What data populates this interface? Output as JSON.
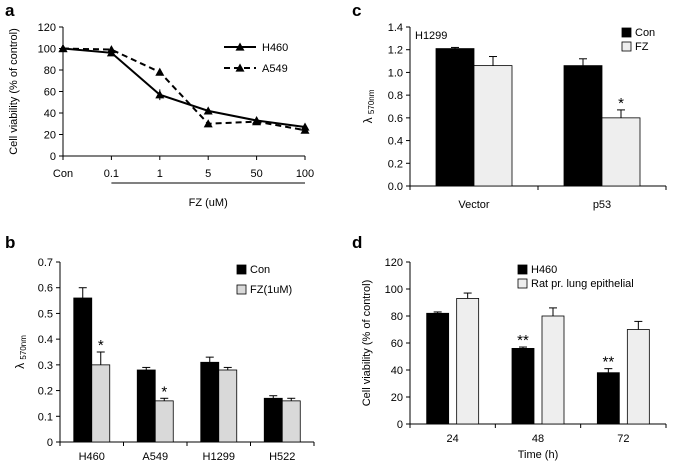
{
  "chart_data": [
    {
      "panel": "a",
      "type": "line",
      "xlabel": "FZ (uM)",
      "ylabel": "Cell viability (% of control)",
      "categories": [
        "Con",
        "0.1",
        "1",
        "5",
        "50",
        "100"
      ],
      "ylim": [
        0,
        120
      ],
      "yticks": [
        0,
        20,
        40,
        60,
        80,
        100,
        120
      ],
      "grid": false,
      "legend": "top-right",
      "series": [
        {
          "name": "H460",
          "values": [
            100,
            96,
            57,
            42,
            33,
            27
          ],
          "errors": [
            3,
            2,
            5,
            2,
            2,
            2
          ],
          "style": "solid",
          "marker": "triangle",
          "color": "#000000"
        },
        {
          "name": "A549",
          "values": [
            100,
            99,
            78,
            30,
            32,
            24
          ],
          "errors": [
            2,
            2,
            2,
            2,
            2,
            2
          ],
          "style": "dashed",
          "marker": "triangle",
          "color": "#000000"
        }
      ]
    },
    {
      "panel": "b",
      "type": "bar",
      "ylabel": "λ 570nm",
      "ylabel_main": "λ",
      "ylabel_sub": "570nm",
      "categories": [
        "H460",
        "A549",
        "H1299",
        "H522"
      ],
      "ylim": [
        0,
        0.7
      ],
      "yticks": [
        "0",
        "0.1",
        "0.2",
        "0.3",
        "0.4",
        "0.5",
        "0.6",
        "0.7"
      ],
      "legend": "top-right",
      "series": [
        {
          "name": "Con",
          "values": [
            0.56,
            0.28,
            0.31,
            0.17
          ],
          "errors": [
            0.04,
            0.01,
            0.02,
            0.01
          ],
          "color": "#000000"
        },
        {
          "name": "FZ(1uM)",
          "values": [
            0.3,
            0.16,
            0.28,
            0.16
          ],
          "errors": [
            0.05,
            0.01,
            0.01,
            0.01
          ],
          "color": "#d9d9d9"
        }
      ],
      "annotations": [
        {
          "category": "H460",
          "series": "FZ(1uM)",
          "text": "*"
        },
        {
          "category": "A549",
          "series": "FZ(1uM)",
          "text": "*"
        }
      ]
    },
    {
      "panel": "c",
      "type": "bar",
      "title": "H1299",
      "ylabel": "λ 570nm",
      "ylabel_main": "λ",
      "ylabel_sub": "570nm",
      "categories": [
        "Vector",
        "p53"
      ],
      "ylim": [
        0,
        1.4
      ],
      "yticks": [
        "0.0",
        "0.2",
        "0.4",
        "0.6",
        "0.8",
        "1.0",
        "1.2",
        "1.4"
      ],
      "legend": "top-right",
      "series": [
        {
          "name": "Con",
          "values": [
            1.21,
            1.06
          ],
          "errors": [
            0.01,
            0.06
          ],
          "color": "#000000"
        },
        {
          "name": "FZ",
          "values": [
            1.06,
            0.6
          ],
          "errors": [
            0.08,
            0.07
          ],
          "color": "#eeeeee"
        }
      ],
      "annotations": [
        {
          "category": "p53",
          "series": "FZ",
          "text": "*"
        }
      ]
    },
    {
      "panel": "d",
      "type": "bar",
      "xlabel": "Time (h)",
      "ylabel": "Cell viability (% of control)",
      "categories": [
        "24",
        "48",
        "72"
      ],
      "ylim": [
        0,
        120
      ],
      "yticks": [
        "0",
        "20",
        "40",
        "60",
        "80",
        "100",
        "120"
      ],
      "legend": "top-right",
      "series": [
        {
          "name": "H460",
          "values": [
            82,
            56,
            38
          ],
          "errors": [
            1,
            1,
            3
          ],
          "color": "#000000"
        },
        {
          "name": "Rat pr. lung epithelial",
          "values": [
            93,
            80,
            70
          ],
          "errors": [
            4,
            6,
            6
          ],
          "color": "#eeeeee"
        }
      ],
      "annotations": [
        {
          "category": "48",
          "series": "H460",
          "text": "**"
        },
        {
          "category": "72",
          "series": "H460",
          "text": "**"
        }
      ]
    }
  ]
}
